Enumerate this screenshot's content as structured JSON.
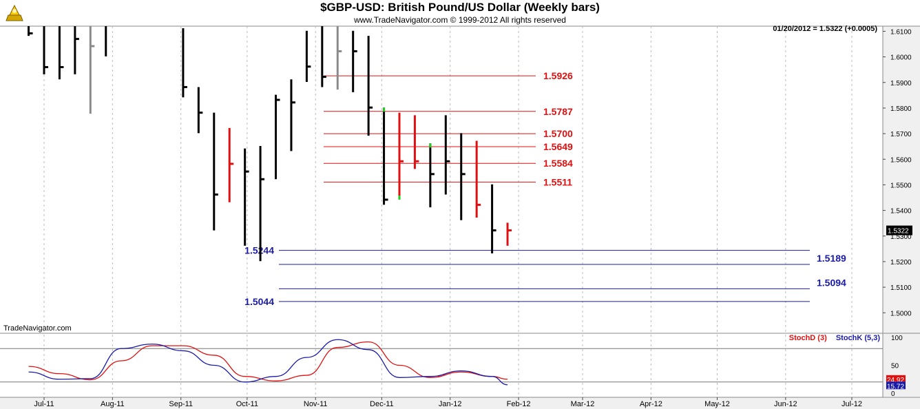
{
  "header": {
    "title": "$GBP-USD:  British Pound/US Dollar  (Weekly bars)",
    "subtitle": "www.TradeNavigator.com © 1999-2012 All rights reserved",
    "readout": "01/20/2012 = 1.5322 (+0.0005)",
    "watermark": "TradeNavigator.com"
  },
  "colors": {
    "up_bar": "#000000",
    "down_bar": "#e01010",
    "neutral_bar": "#8a8a8a",
    "signal": "#22cc22",
    "resistance": "#e01010",
    "support": "#1a1aa8",
    "stoch_d": "#e01010",
    "stoch_k": "#1a1aa8",
    "grid": "#bbbbbb",
    "axis_bg": "#f0f0f0"
  },
  "chart_data": [
    {
      "type": "ohlc",
      "title": "$GBP-USD:  British Pound/US Dollar  (Weekly bars)",
      "ylim": [
        1.492,
        1.612
      ],
      "yticks": [
        "1.5000",
        "1.5100",
        "1.5200",
        "1.5300",
        "1.5400",
        "1.5500",
        "1.5600",
        "1.5700",
        "1.5800",
        "1.5900",
        "1.6000",
        "1.6100"
      ],
      "xticks": [
        "Jul-11",
        "Aug-11",
        "Sep-11",
        "Oct-11",
        "Nov-11",
        "Dec-11",
        "Jan-12",
        "Feb-12",
        "Mar-12",
        "Apr-12",
        "May-12",
        "Jun-12",
        "Jul-12"
      ],
      "last_price_label": "1.5322",
      "bars": [
        {
          "week": "2011-06-24",
          "h": 1.6142,
          "l": 1.6082,
          "c": 1.6092,
          "color": "up"
        },
        {
          "week": "2011-07-01",
          "h": 1.6152,
          "l": 1.5932,
          "c": 1.596,
          "color": "up"
        },
        {
          "week": "2011-07-08",
          "h": 1.6142,
          "l": 1.5912,
          "c": 1.596,
          "color": "up"
        },
        {
          "week": "2011-07-15",
          "h": 1.6142,
          "l": 1.5932,
          "c": 1.607,
          "color": "up"
        },
        {
          "week": "2011-07-22",
          "h": 1.6162,
          "l": 1.5778,
          "c": 1.6042,
          "color": "neutral"
        },
        {
          "week": "2011-07-29",
          "h": 1.6152,
          "l": 1.6002,
          "c": 1.6142,
          "color": "up"
        },
        {
          "week": "2011-09-02",
          "h": 1.6112,
          "l": 1.5842,
          "c": 1.5882,
          "color": "up"
        },
        {
          "week": "2011-09-09",
          "h": 1.5882,
          "l": 1.5702,
          "c": 1.5782,
          "color": "up"
        },
        {
          "week": "2011-09-16",
          "h": 1.5782,
          "l": 1.5322,
          "c": 1.5462,
          "color": "up"
        },
        {
          "week": "2011-09-23",
          "h": 1.5722,
          "l": 1.5432,
          "c": 1.5582,
          "color": "down"
        },
        {
          "week": "2011-09-30",
          "h": 1.5642,
          "l": 1.5262,
          "c": 1.5552,
          "color": "up"
        },
        {
          "week": "2011-10-07",
          "h": 1.5652,
          "l": 1.5202,
          "c": 1.5522,
          "color": "up"
        },
        {
          "week": "2011-10-14",
          "h": 1.5852,
          "l": 1.5522,
          "c": 1.5832,
          "color": "up"
        },
        {
          "week": "2011-10-21",
          "h": 1.5912,
          "l": 1.5632,
          "c": 1.5822,
          "color": "up"
        },
        {
          "week": "2011-10-28",
          "h": 1.6102,
          "l": 1.5902,
          "c": 1.5962,
          "color": "up"
        },
        {
          "week": "2011-11-04",
          "h": 1.6142,
          "l": 1.5882,
          "c": 1.5922,
          "color": "up"
        },
        {
          "week": "2011-11-11",
          "h": 1.6142,
          "l": 1.5872,
          "c": 1.6022,
          "color": "neutral"
        },
        {
          "week": "2011-11-18",
          "h": 1.6102,
          "l": 1.5862,
          "c": 1.6022,
          "color": "up"
        },
        {
          "week": "2011-11-25",
          "h": 1.6082,
          "l": 1.5692,
          "c": 1.5802,
          "color": "up"
        },
        {
          "week": "2011-12-02",
          "h": 1.5802,
          "l": 1.5422,
          "c": 1.5442,
          "color": "up",
          "signal": "high"
        },
        {
          "week": "2011-12-09",
          "h": 1.5782,
          "l": 1.5442,
          "c": 1.5592,
          "color": "down",
          "signal": "low"
        },
        {
          "week": "2011-12-16",
          "h": 1.5772,
          "l": 1.5562,
          "c": 1.5592,
          "color": "down"
        },
        {
          "week": "2011-12-23",
          "h": 1.5662,
          "l": 1.5412,
          "c": 1.5542,
          "color": "up",
          "signal": "high"
        },
        {
          "week": "2011-12-30",
          "h": 1.5772,
          "l": 1.5462,
          "c": 1.5592,
          "color": "up"
        },
        {
          "week": "2012-01-06",
          "h": 1.5702,
          "l": 1.5362,
          "c": 1.5542,
          "color": "up"
        },
        {
          "week": "2012-01-13",
          "h": 1.5672,
          "l": 1.5372,
          "c": 1.5422,
          "color": "down"
        },
        {
          "week": "2012-01-20",
          "h": 1.5502,
          "l": 1.5232,
          "c": 1.5322,
          "color": "up"
        },
        {
          "week": "2012-01-27",
          "h": 1.5352,
          "l": 1.5262,
          "c": 1.5322,
          "color": "down"
        }
      ],
      "levels": [
        {
          "value": 1.5926,
          "label": "1.5926",
          "kind": "resistance"
        },
        {
          "value": 1.5787,
          "label": "1.5787",
          "kind": "resistance"
        },
        {
          "value": 1.57,
          "label": "1.5700",
          "kind": "resistance"
        },
        {
          "value": 1.5649,
          "label": "1.5649",
          "kind": "resistance"
        },
        {
          "value": 1.5584,
          "label": "1.5584",
          "kind": "resistance"
        },
        {
          "value": 1.5511,
          "label": "1.5511",
          "kind": "resistance"
        },
        {
          "value": 1.5244,
          "label": "1.5244",
          "kind": "support"
        },
        {
          "value": 1.5189,
          "label": "1.5189",
          "kind": "support"
        },
        {
          "value": 1.5094,
          "label": "1.5094",
          "kind": "support"
        },
        {
          "value": 1.5044,
          "label": "1.5044",
          "kind": "support"
        }
      ]
    },
    {
      "type": "line",
      "ylim": [
        0,
        100
      ],
      "yticks": [
        "100",
        "50",
        "0"
      ],
      "reference_lines": [
        80,
        20
      ],
      "legend": [
        "StochD (3)",
        "StochK (5,3)"
      ],
      "last_values": {
        "stoch_d": "24.92",
        "stoch_k": "15.72"
      },
      "series": [
        {
          "name": "StochD (3)",
          "values": [
            {
              "x": "2011-06-24",
              "y": 48
            },
            {
              "x": "2011-07-08",
              "y": 35
            },
            {
              "x": "2011-07-22",
              "y": 24
            },
            {
              "x": "2011-08-05",
              "y": 58
            },
            {
              "x": "2011-08-19",
              "y": 85
            },
            {
              "x": "2011-09-02",
              "y": 85
            },
            {
              "x": "2011-09-16",
              "y": 68
            },
            {
              "x": "2011-09-30",
              "y": 30
            },
            {
              "x": "2011-10-14",
              "y": 22
            },
            {
              "x": "2011-10-28",
              "y": 32
            },
            {
              "x": "2011-11-11",
              "y": 82
            },
            {
              "x": "2011-11-25",
              "y": 92
            },
            {
              "x": "2011-12-09",
              "y": 50
            },
            {
              "x": "2011-12-23",
              "y": 28
            },
            {
              "x": "2012-01-06",
              "y": 38
            },
            {
              "x": "2012-01-20",
              "y": 30
            },
            {
              "x": "2012-01-27",
              "y": 25
            }
          ]
        },
        {
          "name": "StochK (5,3)",
          "values": [
            {
              "x": "2011-06-24",
              "y": 38
            },
            {
              "x": "2011-07-08",
              "y": 25
            },
            {
              "x": "2011-07-22",
              "y": 26
            },
            {
              "x": "2011-08-05",
              "y": 80
            },
            {
              "x": "2011-08-19",
              "y": 88
            },
            {
              "x": "2011-09-02",
              "y": 76
            },
            {
              "x": "2011-09-16",
              "y": 50
            },
            {
              "x": "2011-09-30",
              "y": 20
            },
            {
              "x": "2011-10-14",
              "y": 30
            },
            {
              "x": "2011-10-28",
              "y": 64
            },
            {
              "x": "2011-11-11",
              "y": 96
            },
            {
              "x": "2011-11-25",
              "y": 78
            },
            {
              "x": "2011-12-09",
              "y": 28
            },
            {
              "x": "2011-12-23",
              "y": 30
            },
            {
              "x": "2012-01-06",
              "y": 40
            },
            {
              "x": "2012-01-20",
              "y": 30
            },
            {
              "x": "2012-01-27",
              "y": 15
            }
          ]
        }
      ]
    }
  ]
}
